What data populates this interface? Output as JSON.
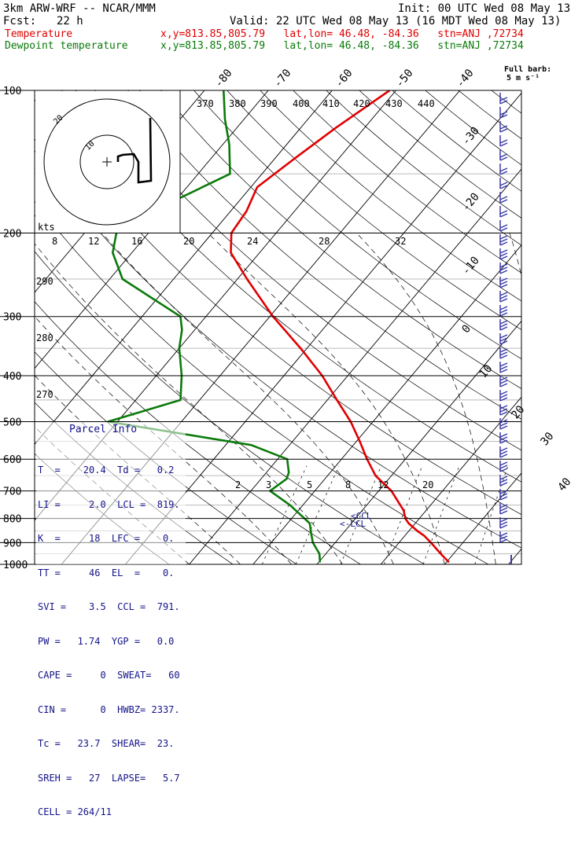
{
  "header": {
    "model": "3km ARW-WRF -- NCAR/MMM",
    "init": "Init: 00 UTC Wed 08 May 13",
    "fcst_label": "Fcst:",
    "fcst_value": "22 h",
    "valid": "Valid: 22 UTC Wed 08 May 13 (16 MDT Wed 08 May 13)",
    "temp_label": "Temperature",
    "temp_info": "x,y=813.85,805.79   lat,lon= 46.48, -84.36   stn=ANJ ,72734",
    "dew_label": "Dewpoint temperature",
    "dew_info": "x,y=813.85,805.79   lat,lon= 46.48, -84.36   stn=ANJ ,72734",
    "barb_note_1": "Full barb:",
    "barb_note_2": "5 m s⁻¹"
  },
  "parcel": {
    "title": "Parcel Info",
    "rows": [
      "T  =    20.4  Td =   0.2",
      "LI =     2.0  LCL =  819.",
      "K  =     18  LFC =    0.",
      "TT =     46  EL  =    0.",
      "SVI =    3.5  CCL =  791.",
      "PW =   1.74  YGP =   0.0",
      "CAPE =     0  SWEAT=   60",
      "CIN =      0  HWBZ= 2337.",
      "Tc =   23.7  SHEAR=  23.",
      "SREH =   27  LAPSE=   5.7",
      "CELL = 264/11"
    ]
  },
  "hodograph": {
    "unit_label": "kts",
    "ring_labels": [
      "8",
      "12",
      "16",
      "20",
      "24",
      "28",
      "32"
    ],
    "inner_labels": [
      "20",
      "10"
    ]
  },
  "isotherm_labels": [
    "-80",
    "-70",
    "-60",
    "-50",
    "-40",
    "-30",
    "-20",
    "-10",
    "0",
    "10",
    "20",
    "30",
    "40"
  ],
  "theta_labels": [
    "370",
    "380",
    "390",
    "400",
    "410",
    "420",
    "430",
    "440",
    "290",
    "280",
    "270"
  ],
  "mixing_ratio_labels": [
    "2",
    "3",
    "5",
    "8",
    "12",
    "20"
  ],
  "lcl_labels": [
    "CCL",
    "LCL"
  ],
  "colors": {
    "temperature": "#e00000",
    "dewpoint": "#0a7a0a",
    "barbs": "#3a3aa8",
    "text": "#13138a"
  },
  "chart_data": {
    "type": "line",
    "title": "",
    "ylabel": "",
    "pressure_ticks": [
      100,
      200,
      300,
      400,
      500,
      600,
      700,
      800,
      900,
      1000
    ],
    "yscale": "log-pressure",
    "ylim": [
      1000,
      100
    ],
    "series": [
      {
        "name": "Temperature",
        "pressure": [
          990,
          950,
          900,
          870,
          850,
          820,
          800,
          770,
          700,
          650,
          600,
          550,
          500,
          450,
          400,
          350,
          300,
          250,
          220,
          200,
          180,
          160,
          140,
          120,
          100
        ],
        "temp_c": [
          20.4,
          18.0,
          15.0,
          13.0,
          11.3,
          9.0,
          7.8,
          6.5,
          2.0,
          -2.5,
          -6.0,
          -9.5,
          -13.5,
          -18.5,
          -24.0,
          -31.0,
          -39.5,
          -48.5,
          -54.5,
          -57.0,
          -57.5,
          -59.0,
          -57.0,
          -54.5,
          -51.0
        ]
      },
      {
        "name": "Dewpoint temperature",
        "pressure": [
          990,
          950,
          900,
          860,
          820,
          800,
          750,
          700,
          660,
          640,
          600,
          560,
          500,
          450,
          400,
          350,
          320,
          300,
          250,
          220,
          200,
          170,
          150,
          130,
          115,
          100
        ],
        "temp_c": [
          0.2,
          -1.0,
          -3.5,
          -5.0,
          -6.5,
          -8.0,
          -12.0,
          -17.0,
          -16.0,
          -16.5,
          -18.5,
          -26.0,
          -51.5,
          -43.0,
          -46.0,
          -50.0,
          -52.0,
          -54.0,
          -68.0,
          -73.0,
          -75.0,
          -70.0,
          -65.0,
          -69.0,
          -73.0,
          -77.0
        ]
      }
    ]
  }
}
